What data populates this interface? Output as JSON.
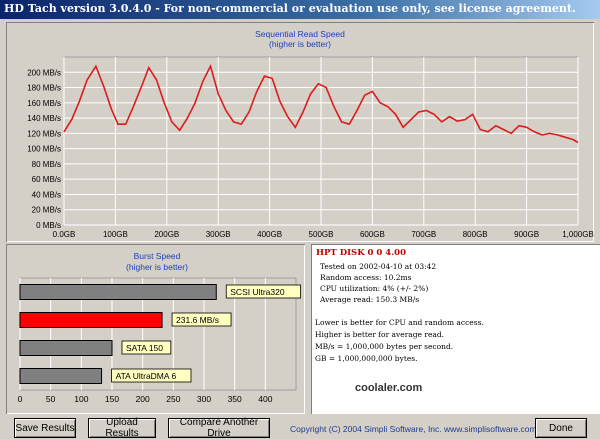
{
  "window": {
    "title": "HD Tach version 3.0.4.0  -  For non-commercial or evaluation use only, see license agreement."
  },
  "colors": {
    "line_red": "#dd1c1c",
    "plot_bg": "#d4d0c8",
    "axis_title_blue": "#1f3fbf",
    "tooltip_yellow": "#ffffc0",
    "highlight_bar": "#ff0000",
    "gray_bar": "#808080",
    "disk_title_red": "#c00000"
  },
  "chart_data": [
    {
      "type": "line",
      "title": "Sequential Read Speed",
      "subtitle": "(higher is better)",
      "xlabel": "",
      "ylabel": "",
      "xlim": [
        0,
        1000
      ],
      "ylim": [
        0,
        220
      ],
      "grid": true,
      "y_ticks": [
        "0 MB/s",
        "20 MB/s",
        "40 MB/s",
        "60 MB/s",
        "80 MB/s",
        "100 MB/s",
        "120 MB/s",
        "140 MB/s",
        "160 MB/s",
        "180 MB/s",
        "200 MB/s"
      ],
      "x_ticks": [
        "0.0GB",
        "100GB",
        "200GB",
        "300GB",
        "400GB",
        "500GB",
        "600GB",
        "700GB",
        "800GB",
        "900GB",
        "1,000GB"
      ],
      "series": [
        {
          "x": [
            0,
            15,
            30,
            45,
            62,
            78,
            92,
            105,
            120,
            135,
            150,
            165,
            180,
            195,
            210,
            225,
            240,
            255,
            270,
            285,
            300,
            315,
            330,
            345,
            360,
            375,
            390,
            405,
            420,
            435,
            450,
            465,
            480,
            495,
            510,
            525,
            540,
            555,
            570,
            585,
            600,
            615,
            630,
            645,
            660,
            675,
            690,
            705,
            720,
            735,
            750,
            765,
            780,
            795,
            810,
            825,
            840,
            855,
            870,
            885,
            900,
            915,
            930,
            945,
            960,
            975,
            990,
            1000
          ],
          "y": [
            122,
            138,
            162,
            190,
            208,
            180,
            152,
            132,
            132,
            155,
            180,
            206,
            190,
            160,
            135,
            124,
            140,
            160,
            188,
            208,
            172,
            150,
            135,
            132,
            148,
            175,
            195,
            192,
            162,
            142,
            128,
            148,
            172,
            185,
            180,
            155,
            135,
            132,
            150,
            170,
            175,
            160,
            155,
            145,
            128,
            138,
            148,
            150,
            145,
            135,
            142,
            136,
            138,
            145,
            125,
            122,
            130,
            125,
            120,
            130,
            128,
            122,
            118,
            120,
            118,
            115,
            112,
            108
          ]
        }
      ]
    },
    {
      "type": "bar",
      "title": "Burst Speed",
      "subtitle": "(higher is better)",
      "xlim": [
        0,
        450
      ],
      "x_ticks": [
        "0",
        "50",
        "100",
        "150",
        "200",
        "250",
        "300",
        "350",
        "400"
      ],
      "categories": [
        "SCSI Ultra320",
        "231.6 MB/s",
        "SATA 150",
        "ATA UltraDMA 6"
      ],
      "values": [
        320,
        231.6,
        150,
        133
      ],
      "highlight_index": 1
    }
  ],
  "info": {
    "disk_name": "HPT DISK 0 0 4.00",
    "tested_on": "Tested on 2002-04-10 at 03:42",
    "random_access": "Random access: 10.2ms",
    "cpu_utilization": "CPU utilization: 4% (+/- 2%)",
    "average_read": "Average read: 150.3 MB/s",
    "note1": "Lower is better for CPU and random access.",
    "note2": "Higher is better for average read.",
    "note3": "MB/s = 1,000,000 bytes per second.",
    "note4": "GB = 1,000,000,000 bytes."
  },
  "footer": {
    "save_results": "Save Results",
    "upload_results": "Upload Results",
    "compare_drive": "Compare Another Drive",
    "copyright": "Copyright (C) 2004 Simpli Software, Inc. www.simplisoftware.com",
    "done": "Done",
    "watermark": "coolaler.com"
  }
}
